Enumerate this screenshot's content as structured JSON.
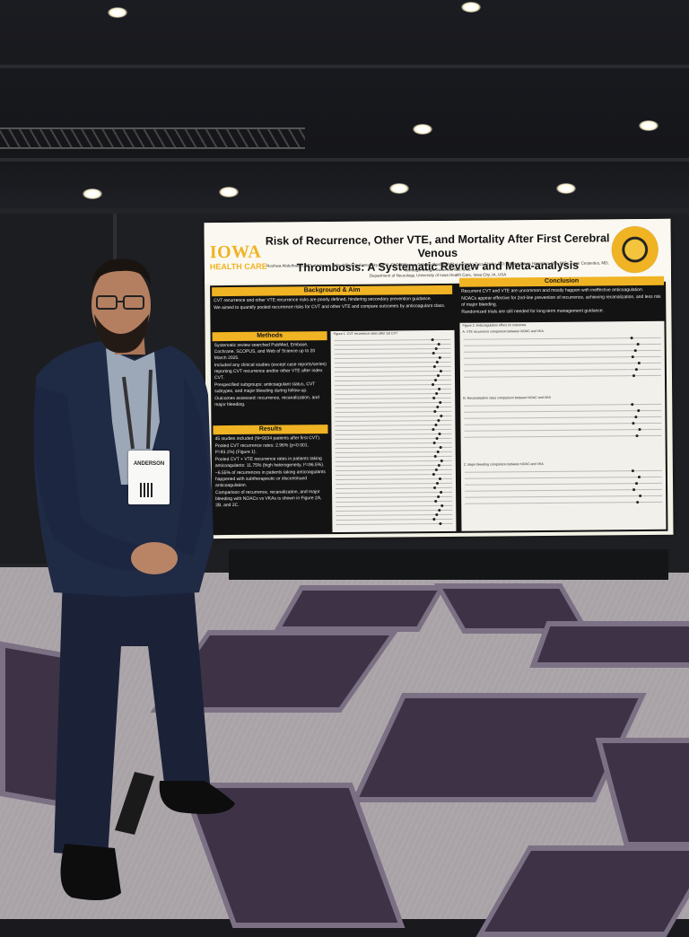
{
  "scene": {
    "description_type": "photo",
    "colors": {
      "iowa_gold": "#f0b323",
      "poster_dark": "#131313",
      "carpet": "#a9a3a8",
      "suit": "#1f2a44"
    }
  },
  "poster": {
    "logo_top": "IOWA",
    "logo_bottom": "HEALTH CARE",
    "title_line1": "Risk of Recurrence, Other VTE, and Mortality After First Cerebral Venous",
    "title_line2": "Thrombosis: A Systematic Review and Meta-analysis",
    "authors": "Noshwa Abdelhakim, MD; Anderson Brito, MD; Eric Kontovsky, MPH, PhD; Milagros Galecio-Castillo, MD; Leonardo Cruz Criollo, MD; William Davis Haselden, MD, PhD; Jorge Cespedes, MD; Santiago Ortega-Gutierrez, MD, MSc",
    "affiliation": "Department of Neurology, University of Iowa Health Care, Iowa City, IA, USA",
    "background": {
      "heading": "Background & Aim",
      "items": [
        "CVT recurrence and other VTE recurrence risks are poorly defined, hindering secondary prevention guidance.",
        "We aimed to quantify pooled recurrence risks for CVT and other VTE and compare outcomes by anticoagulant class."
      ]
    },
    "methods": {
      "heading": "Methods",
      "items": [
        "Systematic review searched PubMed, Embase, Cochrane, SCOPUS, and Web of Science up to 20 March 2025.",
        "Included any clinical studies (except case reports/series) reporting CVT recurrence and/or other VTE after index CVT.",
        "Prespecified subgroups: anticoagulant status, CVT subtypes, and major bleeding during follow-up.",
        "Outcomes assessed: recurrence, recanalization, and major bleeding."
      ]
    },
    "results": {
      "heading": "Results",
      "items": [
        "45 studies included (N=9034 patients after first CVT).",
        "Pooled CVT recurrence rates: 2.96% (p<0.001, I²=93.1%) (Figure 1).",
        "Pooled CVT + VTE recurrence rates in patients taking anticoagulants: 11.75% (high heterogeneity, I²=96.5%).",
        "~6.55% of recurrences in patients taking anticoagulants happened with subtherapeutic or discontinued anticoagulation.",
        "Comparison of recurrence, recanalization, and major bleeding with NOACs vs VKAs is shown in Figure 2A, 2B, and 2C."
      ]
    },
    "conclusion": {
      "heading": "Conclusion",
      "items": [
        "Recurrent CVT and VTE are uncommon and mostly happen with ineffective anticoagulation.",
        "NOACs appear effective for 2nd-line prevention of recurrence, achieving recanalization, and less risk of major bleeding.",
        "Randomized trials are still needed for long-term management guidance."
      ]
    },
    "figures": {
      "figure1": "Figure 1. CVT recurrence rates after 1st CVT",
      "figure2": "Figure 2. Anticoagulation effect on outcomes",
      "figure2a": "A. VTE recurrence comparison between NOAC and VKA",
      "figure2b": "B. Recanalization rates comparison between NOAC and VKA",
      "figure2c": "C. Major bleeding comparison between NOAC and VKA"
    }
  },
  "badge": {
    "name": "ANDERSON"
  }
}
